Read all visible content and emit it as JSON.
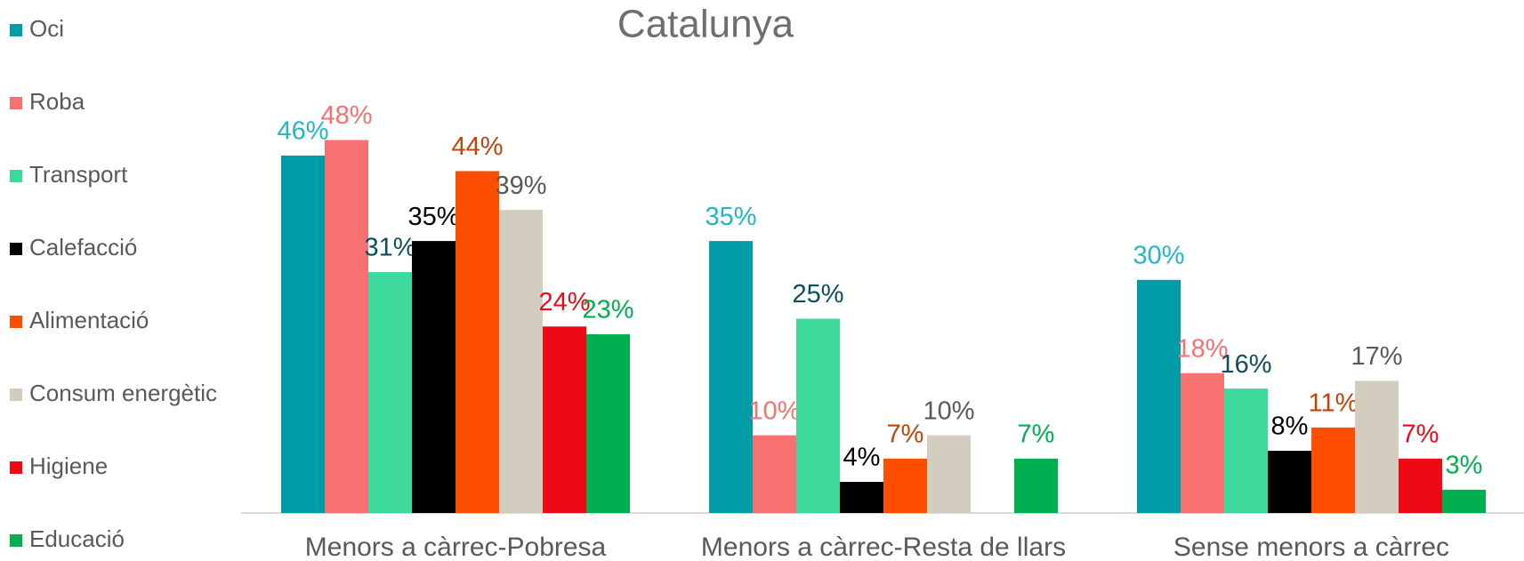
{
  "chart_data": {
    "type": "bar",
    "title": "Catalunya",
    "categories": [
      "Menors a càrrec-Pobresa",
      "Menors a càrrec-Resta de llars",
      "Sense menors a càrrec"
    ],
    "series": [
      {
        "name": "Oci",
        "color": "#009ca8",
        "label_color": "#1fb7c9",
        "values": [
          46,
          35,
          30
        ],
        "value_labels": [
          "46%",
          "35%",
          "30%"
        ]
      },
      {
        "name": "Roba",
        "color": "#f87171",
        "label_color": "#f87171",
        "values": [
          48,
          10,
          18
        ],
        "value_labels": [
          "48%",
          "10%",
          "18%"
        ]
      },
      {
        "name": "Transport",
        "color": "#3cd89c",
        "label_color": "#0d4f5c",
        "values": [
          31,
          25,
          16
        ],
        "value_labels": [
          "31%",
          "25%",
          "16%"
        ]
      },
      {
        "name": "Calefacció",
        "color": "#000000",
        "label_color": "#000000",
        "values": [
          35,
          4,
          8
        ],
        "value_labels": [
          "35%",
          "4%",
          "8%"
        ]
      },
      {
        "name": "Alimentació",
        "color": "#ff4e00",
        "label_color": "#c0440a",
        "values": [
          44,
          7,
          11
        ],
        "value_labels": [
          "44%",
          "7%",
          "11%"
        ]
      },
      {
        "name": "Consum energètic",
        "color": "#d3cdc0",
        "label_color": "#595959",
        "values": [
          39,
          10,
          17
        ],
        "value_labels": [
          "39%",
          "10%",
          "17%"
        ]
      },
      {
        "name": "Higiene",
        "color": "#ee0a14",
        "label_color": "#ee0a14",
        "values": [
          24,
          null,
          7
        ],
        "value_labels": [
          "24%",
          null,
          "7%"
        ]
      },
      {
        "name": "Educació",
        "color": "#00b050",
        "label_color": "#00b050",
        "values": [
          23,
          7,
          3
        ],
        "value_labels": [
          "23%",
          "7%",
          "3%"
        ]
      }
    ],
    "legend": "left"
  }
}
